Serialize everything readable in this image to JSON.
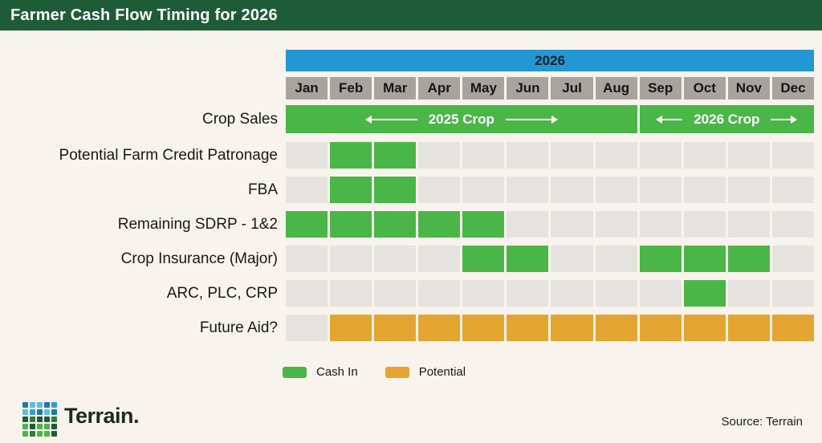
{
  "title": "Farmer Cash Flow Timing for 2026",
  "colors": {
    "background": "#f8f3ec",
    "title_bg": "#1e5c37",
    "header_blue": "#2397d2",
    "month_gray": "#a7a49f",
    "cell_gray": "#e5e3df",
    "cash_in": "#4ab648",
    "potential": "#e3a52f"
  },
  "chart_data": {
    "type": "table",
    "subtype": "gantt-timing-grid",
    "title": "Farmer Cash Flow Timing for 2026",
    "year_label": "2026",
    "months": [
      "Jan",
      "Feb",
      "Mar",
      "Apr",
      "May",
      "Jun",
      "Jul",
      "Aug",
      "Sep",
      "Oct",
      "Nov",
      "Dec"
    ],
    "crop_sales": {
      "label": "Crop Sales",
      "bars": [
        {
          "text": "2025 Crop",
          "start_month": "Jan",
          "end_month": "Aug",
          "span": [
            1,
            8
          ]
        },
        {
          "text": "2026 Crop",
          "start_month": "Sep",
          "end_month": "Dec",
          "span": [
            9,
            12
          ]
        }
      ]
    },
    "cell_value_key": {
      "0": "none",
      "1": "cash_in",
      "2": "potential"
    },
    "rows": [
      {
        "label": "Potential Farm Credit Patronage",
        "active_months": [
          "Feb",
          "Mar"
        ],
        "status": "cash_in",
        "cells": [
          0,
          1,
          1,
          0,
          0,
          0,
          0,
          0,
          0,
          0,
          0,
          0
        ]
      },
      {
        "label": "FBA",
        "active_months": [
          "Feb",
          "Mar"
        ],
        "status": "cash_in",
        "cells": [
          0,
          1,
          1,
          0,
          0,
          0,
          0,
          0,
          0,
          0,
          0,
          0
        ]
      },
      {
        "label": "Remaining SDRP - 1&2",
        "active_months": [
          "Jan",
          "Feb",
          "Mar",
          "Apr",
          "May"
        ],
        "status": "cash_in",
        "cells": [
          1,
          1,
          1,
          1,
          1,
          0,
          0,
          0,
          0,
          0,
          0,
          0
        ]
      },
      {
        "label": "Crop Insurance (Major)",
        "active_months": [
          "May",
          "Jun",
          "Sep",
          "Oct",
          "Nov"
        ],
        "status": "cash_in",
        "cells": [
          0,
          0,
          0,
          0,
          1,
          1,
          0,
          0,
          1,
          1,
          1,
          0
        ]
      },
      {
        "label": "ARC, PLC, CRP",
        "active_months": [
          "Oct"
        ],
        "status": "cash_in",
        "cells": [
          0,
          0,
          0,
          0,
          0,
          0,
          0,
          0,
          0,
          1,
          0,
          0
        ]
      },
      {
        "label": "Future Aid?",
        "active_months": [
          "Feb",
          "Mar",
          "Apr",
          "May",
          "Jun",
          "Jul",
          "Aug",
          "Sep",
          "Oct",
          "Nov",
          "Dec"
        ],
        "status": "potential",
        "cells": [
          0,
          2,
          2,
          2,
          2,
          2,
          2,
          2,
          2,
          2,
          2,
          2
        ]
      }
    ],
    "legend": [
      {
        "label": "Cash In",
        "color": "#4ab648"
      },
      {
        "label": "Potential",
        "color": "#e3a52f"
      }
    ],
    "legend_position": "bottom-left",
    "grid": false
  },
  "footer": {
    "logo_text": "Terrain.",
    "source": "Source: Terrain",
    "logo_grid": [
      [
        "#1c7ab0",
        "#5bbde8",
        "#5bbde8",
        "#1c7ab0",
        "#2d9fd8"
      ],
      [
        "#5bbde8",
        "#2d9fd8",
        "#1c7ab0",
        "#5bbde8",
        "#1c7ab0"
      ],
      [
        "#1d5c36",
        "#2e7d3a",
        "#1d5c36",
        "#1d5c36",
        "#2e7d3a"
      ],
      [
        "#4ab648",
        "#1d5c36",
        "#4ab648",
        "#4ab648",
        "#1d5c36"
      ],
      [
        "#4ab648",
        "#2e7d3a",
        "#4ab648",
        "#4ab648",
        "#1d5c36"
      ]
    ]
  }
}
